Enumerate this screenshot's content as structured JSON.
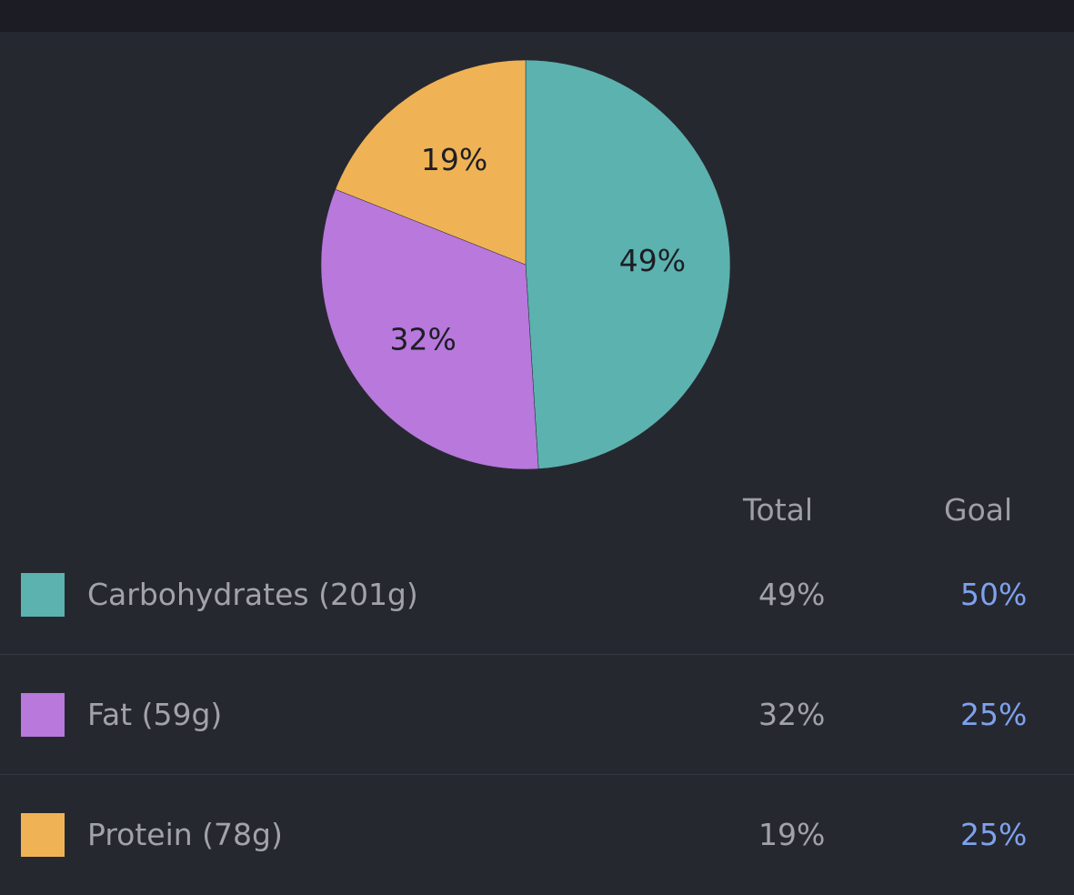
{
  "colors": {
    "carbohydrates": "#5cb2ae",
    "fat": "#b878dc",
    "protein": "#efb356",
    "goal_text": "#7ea2ee"
  },
  "chart_data": {
    "type": "pie",
    "slices": [
      {
        "name": "Carbohydrates",
        "value": 49,
        "label": "49%",
        "color": "#5cb2ae"
      },
      {
        "name": "Fat",
        "value": 32,
        "label": "32%",
        "color": "#b878dc"
      },
      {
        "name": "Protein",
        "value": 19,
        "label": "19%",
        "color": "#efb356"
      }
    ]
  },
  "table": {
    "headers": {
      "total": "Total",
      "goal": "Goal"
    },
    "rows": [
      {
        "label": "Carbohydrates (201g)",
        "total": "49%",
        "goal": "50%"
      },
      {
        "label": "Fat (59g)",
        "total": "32%",
        "goal": "25%"
      },
      {
        "label": "Protein (78g)",
        "total": "19%",
        "goal": "25%"
      }
    ]
  }
}
